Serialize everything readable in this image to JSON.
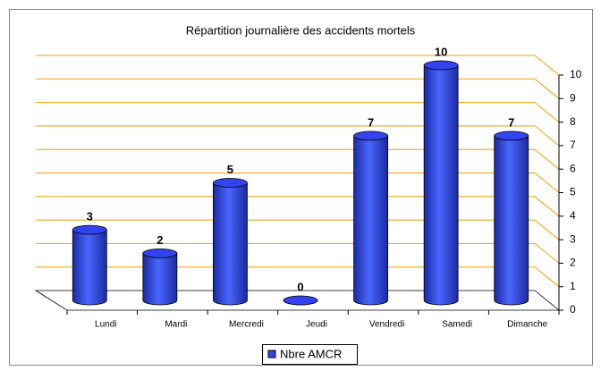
{
  "chart_data": {
    "type": "bar3d",
    "title": "Répartition journalière des accidents mortels",
    "categories": [
      "Lundi",
      "Mardi",
      "Mercredi",
      "Jeudi",
      "Vendredi",
      "Samedi",
      "Dimanche"
    ],
    "series": [
      {
        "name": "Nbre AMCR",
        "color": "#3344ee",
        "values": [
          3,
          2,
          5,
          0,
          7,
          10,
          7
        ]
      }
    ],
    "ylim": [
      0,
      10
    ],
    "yticks": [
      0,
      1,
      2,
      3,
      4,
      5,
      6,
      7,
      8,
      9,
      10
    ],
    "grid": true,
    "grid_color": "#f0a000",
    "legend": "bottom"
  }
}
